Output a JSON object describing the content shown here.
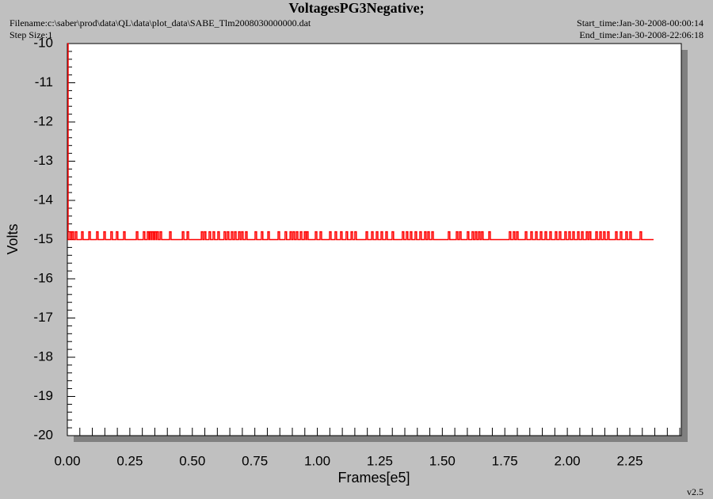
{
  "chart_data": {
    "type": "line",
    "title": "VoltagesPG3Negative;",
    "filename": "Filename:c:\\saber\\prod\\data\\QL\\data\\plot_data\\SABE_Tlm2008030000000.dat",
    "step_size": "Step Size:1",
    "start_time": "Start_time:Jan-30-2008-00:00:14",
    "end_time": "End_time:Jan-30-2008-22:06:18",
    "version": "v2.5",
    "x_label": "Frames[e5]",
    "y_label": "Volts",
    "xlim": [
      0,
      2.456
    ],
    "ylim": [
      -20,
      -10
    ],
    "xticks": [
      {
        "value": 0,
        "label": "0.00"
      },
      {
        "value": 0.25,
        "label": "0.25"
      },
      {
        "value": 0.5,
        "label": "0.50"
      },
      {
        "value": 0.75,
        "label": "0.75"
      },
      {
        "value": 1,
        "label": "1.00"
      },
      {
        "value": 1.25,
        "label": "1.25"
      },
      {
        "value": 1.5,
        "label": "1.50"
      },
      {
        "value": 1.75,
        "label": "1.75"
      },
      {
        "value": 2,
        "label": "2.00"
      },
      {
        "value": 2.25,
        "label": "2.25"
      }
    ],
    "yticks": [
      -20,
      -19,
      -18,
      -17,
      -16,
      -15,
      -14,
      -13,
      -12,
      -11,
      -10
    ],
    "minor_ticks": 5,
    "step": "post",
    "series": [
      {
        "color": "#ff0000",
        "x": [
          0,
          0.003,
          0.01,
          0.016,
          0.019,
          0.025,
          0.032,
          0.038,
          0.057,
          0.063,
          0.086,
          0.092,
          0.117,
          0.123,
          0.146,
          0.152,
          0.174,
          0.18,
          0.196,
          0.202,
          0.225,
          0.231,
          0.276,
          0.282,
          0.304,
          0.31,
          0.32,
          0.326,
          0.33,
          0.336,
          0.339,
          0.345,
          0.349,
          0.355,
          0.358,
          0.364,
          0.371,
          0.377,
          0.409,
          0.415,
          0.46,
          0.466,
          0.479,
          0.485,
          0.536,
          0.542,
          0.548,
          0.554,
          0.567,
          0.573,
          0.583,
          0.589,
          0.602,
          0.608,
          0.627,
          0.633,
          0.64,
          0.646,
          0.656,
          0.662,
          0.669,
          0.675,
          0.685,
          0.691,
          0.697,
          0.703,
          0.713,
          0.719,
          0.751,
          0.757,
          0.776,
          0.782,
          0.802,
          0.808,
          0.843,
          0.849,
          0.871,
          0.877,
          0.891,
          0.897,
          0.903,
          0.909,
          0.916,
          0.922,
          0.932,
          0.938,
          0.948,
          0.954,
          0.957,
          0.963,
          0.992,
          0.998,
          1.011,
          1.017,
          1.049,
          1.055,
          1.071,
          1.077,
          1.093,
          1.099,
          1.115,
          1.121,
          1.135,
          1.141,
          1.15,
          1.156,
          1.195,
          1.201,
          1.217,
          1.223,
          1.236,
          1.242,
          1.255,
          1.261,
          1.274,
          1.28,
          1.299,
          1.305,
          1.34,
          1.346,
          1.356,
          1.362,
          1.372,
          1.378,
          1.391,
          1.397,
          1.41,
          1.416,
          1.429,
          1.435,
          1.442,
          1.448,
          1.458,
          1.464,
          1.524,
          1.53,
          1.556,
          1.562,
          1.569,
          1.575,
          1.6,
          1.606,
          1.619,
          1.625,
          1.632,
          1.638,
          1.645,
          1.651,
          1.657,
          1.663,
          1.686,
          1.692,
          1.768,
          1.774,
          1.784,
          1.79,
          1.797,
          1.803,
          1.832,
          1.838,
          1.854,
          1.86,
          1.873,
          1.879,
          1.892,
          1.898,
          1.911,
          1.917,
          1.93,
          1.936,
          1.952,
          1.958,
          1.968,
          1.974,
          1.99,
          1.996,
          2.006,
          2.012,
          2.022,
          2.028,
          2.041,
          2.047,
          2.057,
          2.063,
          2.076,
          2.082,
          2.088,
          2.094,
          2.114,
          2.12,
          2.13,
          2.136,
          2.145,
          2.151,
          2.161,
          2.167,
          2.193,
          2.199,
          2.212,
          2.218,
          2.234,
          2.24,
          2.25,
          2.256,
          2.291,
          2.297,
          2.345
        ],
        "values": [
          -10,
          -15,
          -14.8,
          -15,
          -14.8,
          -15,
          -14.8,
          -15,
          -14.8,
          -15,
          -14.8,
          -15,
          -14.8,
          -15,
          -14.8,
          -15,
          -14.8,
          -15,
          -14.8,
          -15,
          -14.8,
          -15,
          -14.8,
          -15,
          -14.8,
          -15,
          -14.8,
          -15,
          -14.8,
          -15,
          -14.8,
          -15,
          -14.8,
          -15,
          -14.8,
          -15,
          -14.8,
          -15,
          -14.8,
          -15,
          -14.8,
          -15,
          -14.8,
          -15,
          -14.8,
          -15,
          -14.8,
          -15,
          -14.8,
          -15,
          -14.8,
          -15,
          -14.8,
          -15,
          -14.8,
          -15,
          -14.8,
          -15,
          -14.8,
          -15,
          -14.8,
          -15,
          -14.8,
          -15,
          -14.8,
          -15,
          -14.8,
          -15,
          -14.8,
          -15,
          -14.8,
          -15,
          -14.8,
          -15,
          -14.8,
          -15,
          -14.8,
          -15,
          -14.8,
          -15,
          -14.8,
          -15,
          -14.8,
          -15,
          -14.8,
          -15,
          -14.8,
          -15,
          -14.8,
          -15,
          -14.8,
          -15,
          -14.8,
          -15,
          -14.8,
          -15,
          -14.8,
          -15,
          -14.8,
          -15,
          -14.8,
          -15,
          -14.8,
          -15,
          -14.8,
          -15,
          -14.8,
          -15,
          -14.8,
          -15,
          -14.8,
          -15,
          -14.8,
          -15,
          -14.8,
          -15,
          -14.8,
          -15,
          -14.8,
          -15,
          -14.8,
          -15,
          -14.8,
          -15,
          -14.8,
          -15,
          -14.8,
          -15,
          -14.8,
          -15,
          -14.8,
          -15,
          -14.8,
          -15,
          -14.8,
          -15,
          -14.8,
          -15,
          -14.8,
          -15,
          -14.8,
          -15,
          -14.8,
          -15,
          -14.8,
          -15,
          -14.8,
          -15,
          -14.8,
          -15,
          -14.8,
          -15,
          -14.8,
          -15,
          -14.8,
          -15,
          -14.8,
          -15,
          -14.8,
          -15,
          -14.8,
          -15,
          -14.8,
          -15,
          -14.8,
          -15,
          -14.8,
          -15,
          -14.8,
          -15,
          -14.8,
          -15,
          -14.8,
          -15,
          -14.8,
          -15,
          -14.8,
          -15,
          -14.8,
          -15,
          -14.8,
          -15,
          -14.8,
          -15,
          -14.8,
          -15,
          -14.8,
          -15,
          -14.8,
          -15,
          -14.8,
          -15,
          -14.8,
          -15,
          -14.8,
          -15,
          -14.8,
          -15,
          -14.8,
          -15,
          -14.8,
          -15,
          -14.8,
          -15,
          -14.8,
          -15,
          -15
        ]
      }
    ]
  }
}
